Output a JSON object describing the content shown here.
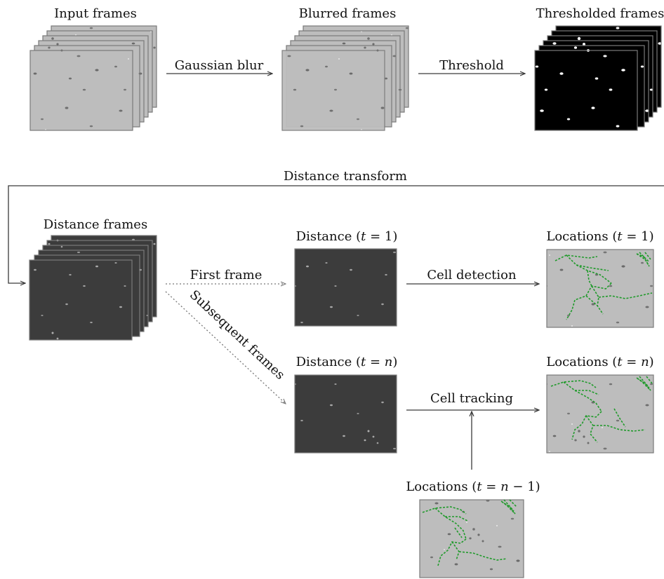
{
  "stages": {
    "input": {
      "label": "Input frames"
    },
    "blurred": {
      "label": "Blurred frames"
    },
    "thresholded": {
      "label": "Thresholded frames"
    },
    "distance": {
      "label": "Distance frames"
    }
  },
  "edges": {
    "gaussian_blur": "Gaussian blur",
    "threshold": "Threshold",
    "distance_transform": "Distance transform",
    "first_frame": "First frame",
    "subsequent_frames": "Subsequent frames",
    "cell_detection": "Cell detection",
    "cell_tracking": "Cell tracking"
  },
  "outputs": {
    "distance_t1": {
      "prefix": "Distance (",
      "var": "t",
      "rest": " = 1)"
    },
    "distance_tn": {
      "prefix": "Distance (",
      "var": "t",
      "mid": " = ",
      "var2": "n",
      "rest": ")"
    },
    "locations_t1": {
      "prefix": "Locations (",
      "var": "t",
      "rest": " = 1)"
    },
    "locations_tn": {
      "prefix": "Locations (",
      "var": "t",
      "mid": " = ",
      "var2": "n",
      "rest": ")"
    },
    "locations_tn1": {
      "prefix": "Locations (",
      "var": "t",
      "mid": " = ",
      "var2": "n",
      "rest": " − 1)"
    }
  },
  "colors": {
    "cell_background": "#bdbdbd",
    "threshold_background": "#000000",
    "distance_background": "#3c3c3c",
    "track_green": "#1f9a2a",
    "frame_border": "#7a7a7a",
    "arrow": "#3a3a3a"
  }
}
